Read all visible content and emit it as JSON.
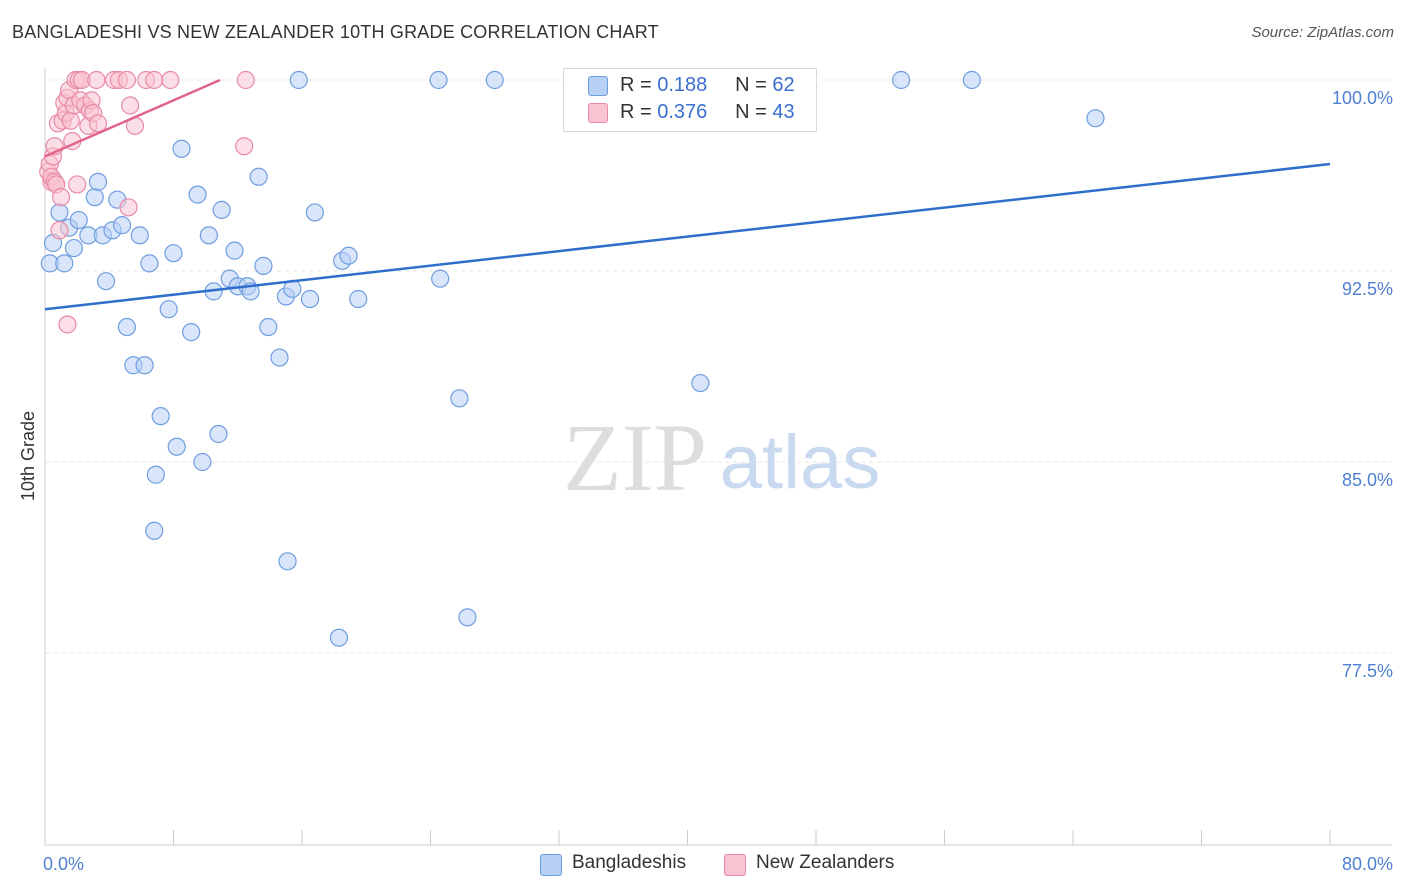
{
  "title": "BANGLADESHI VS NEW ZEALANDER 10TH GRADE CORRELATION CHART",
  "source": "Source: ZipAtlas.com",
  "watermark": {
    "zip": "ZIP",
    "atlas": "atlas"
  },
  "legend": {
    "r_label": "R =",
    "n_label": "N =",
    "series": [
      {
        "name": "Bangladeshis",
        "r": "0.188",
        "n": "62",
        "fill": "#b8d0f5",
        "stroke": "#6f9ee0"
      },
      {
        "name": "New Zealanders",
        "r": "0.376",
        "n": "43",
        "fill": "#f9c3d2",
        "stroke": "#e88aa6"
      }
    ]
  },
  "chart_data": {
    "type": "scatter",
    "title": "BANGLADESHI VS NEW ZEALANDER 10TH GRADE CORRELATION CHART",
    "xlabel": "",
    "ylabel": "10th Grade",
    "xlim": [
      0,
      80
    ],
    "ylim": [
      70,
      101
    ],
    "x_tick_labels": [
      "0.0%",
      "80.0%"
    ],
    "y_ticks": [
      100.0,
      92.5,
      85.0,
      77.5
    ],
    "y_tick_labels": [
      "100.0%",
      "92.5%",
      "85.0%",
      "77.5%"
    ],
    "grid": true,
    "legend_position": "top-center",
    "series": [
      {
        "name": "Bangladeshis",
        "color": "#6f9ee0",
        "fill": "#b8d0f5",
        "trend": {
          "x": [
            0,
            80
          ],
          "y": [
            91.0,
            96.7
          ]
        },
        "points": [
          [
            0.3,
            92.8
          ],
          [
            0.5,
            93.6
          ],
          [
            0.9,
            94.8
          ],
          [
            1.2,
            92.8
          ],
          [
            1.5,
            94.2
          ],
          [
            1.8,
            93.4
          ],
          [
            2.1,
            94.5
          ],
          [
            2.7,
            93.9
          ],
          [
            3.1,
            95.4
          ],
          [
            3.3,
            96.0
          ],
          [
            3.6,
            93.9
          ],
          [
            3.8,
            92.1
          ],
          [
            4.2,
            94.1
          ],
          [
            4.5,
            95.3
          ],
          [
            4.8,
            94.3
          ],
          [
            5.1,
            90.3
          ],
          [
            5.5,
            88.8
          ],
          [
            5.9,
            93.9
          ],
          [
            6.2,
            88.8
          ],
          [
            6.5,
            92.8
          ],
          [
            6.9,
            84.5
          ],
          [
            6.8,
            82.3
          ],
          [
            7.2,
            86.8
          ],
          [
            7.7,
            91.0
          ],
          [
            8.0,
            93.2
          ],
          [
            8.2,
            85.6
          ],
          [
            8.5,
            97.3
          ],
          [
            9.1,
            90.1
          ],
          [
            9.5,
            95.5
          ],
          [
            9.8,
            85.0
          ],
          [
            10.2,
            93.9
          ],
          [
            10.5,
            91.7
          ],
          [
            10.8,
            86.1
          ],
          [
            11.0,
            94.9
          ],
          [
            11.5,
            92.2
          ],
          [
            11.8,
            93.3
          ],
          [
            12.0,
            91.9
          ],
          [
            12.6,
            91.9
          ],
          [
            12.8,
            91.7
          ],
          [
            13.3,
            96.2
          ],
          [
            13.6,
            92.7
          ],
          [
            13.9,
            90.3
          ],
          [
            14.6,
            89.1
          ],
          [
            15.0,
            91.5
          ],
          [
            15.1,
            81.1
          ],
          [
            15.4,
            91.8
          ],
          [
            15.8,
            100.0
          ],
          [
            16.5,
            91.4
          ],
          [
            16.8,
            94.8
          ],
          [
            18.3,
            78.1
          ],
          [
            18.5,
            92.9
          ],
          [
            18.9,
            93.1
          ],
          [
            19.5,
            91.4
          ],
          [
            24.5,
            100.0
          ],
          [
            24.6,
            92.2
          ],
          [
            25.8,
            87.5
          ],
          [
            26.3,
            78.9
          ],
          [
            28.0,
            100.0
          ],
          [
            40.8,
            88.1
          ],
          [
            53.3,
            100.0
          ],
          [
            57.7,
            100.0
          ],
          [
            65.4,
            98.5
          ]
        ]
      },
      {
        "name": "New Zealanders",
        "color": "#e88aa6",
        "fill": "#f9c3d2",
        "trend": {
          "x": [
            0,
            10.9
          ],
          "y": [
            97.0,
            100.0
          ]
        },
        "points": [
          [
            0.2,
            96.4
          ],
          [
            0.3,
            96.7
          ],
          [
            0.4,
            96.0
          ],
          [
            0.4,
            96.2
          ],
          [
            0.5,
            97.0
          ],
          [
            0.6,
            96.0
          ],
          [
            0.6,
            97.4
          ],
          [
            0.7,
            95.9
          ],
          [
            0.8,
            98.3
          ],
          [
            0.9,
            94.1
          ],
          [
            1.0,
            95.4
          ],
          [
            1.1,
            98.4
          ],
          [
            1.2,
            99.1
          ],
          [
            1.3,
            98.7
          ],
          [
            1.4,
            99.3
          ],
          [
            1.4,
            90.4
          ],
          [
            1.5,
            99.6
          ],
          [
            1.6,
            98.4
          ],
          [
            1.7,
            97.6
          ],
          [
            1.8,
            99.0
          ],
          [
            1.9,
            100.0
          ],
          [
            2.0,
            95.9
          ],
          [
            2.1,
            100.0
          ],
          [
            2.2,
            99.2
          ],
          [
            2.3,
            100.0
          ],
          [
            2.5,
            99.0
          ],
          [
            2.7,
            98.2
          ],
          [
            2.8,
            98.8
          ],
          [
            2.9,
            99.2
          ],
          [
            3.0,
            98.7
          ],
          [
            3.2,
            100.0
          ],
          [
            3.3,
            98.3
          ],
          [
            4.3,
            100.0
          ],
          [
            4.6,
            100.0
          ],
          [
            5.1,
            100.0
          ],
          [
            5.2,
            95.0
          ],
          [
            5.3,
            99.0
          ],
          [
            5.6,
            98.2
          ],
          [
            6.3,
            100.0
          ],
          [
            6.8,
            100.0
          ],
          [
            7.8,
            100.0
          ],
          [
            12.4,
            97.4
          ],
          [
            12.5,
            100.0
          ]
        ]
      }
    ]
  }
}
